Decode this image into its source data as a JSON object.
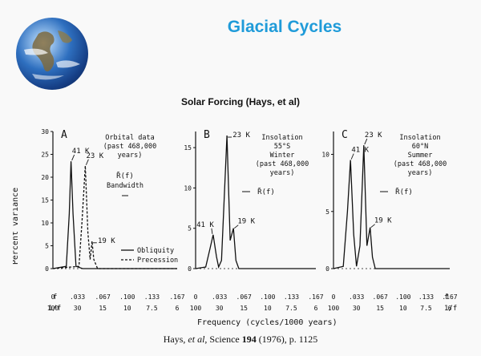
{
  "title": "Glacial Cycles",
  "subtitle": "Solar Forcing (Hays, et al)",
  "citation": {
    "prefix": "Hays, ",
    "etal": "et al",
    "journal": ", Science ",
    "volume": "194",
    "rest": " (1976), p. 1125"
  },
  "figure": {
    "ylabel": "Percent variance",
    "xlabel": "Frequency (cycles/1000 years)",
    "f_label": "f",
    "inv_label": "1/f",
    "f_ticks": [
      "0",
      ".033",
      ".067",
      ".100",
      ".133",
      ".167"
    ],
    "inv_ticks": [
      "100",
      "30",
      "15",
      "10",
      "7.5",
      "6"
    ]
  },
  "chart_data": [
    {
      "type": "line",
      "panel": "A",
      "annotation": [
        "Orbital data",
        "(past 468,000",
        "years)"
      ],
      "r_label": "R̄(f)",
      "bandwidth_label": "Bandwidth",
      "y_ticks": [
        "0",
        "5",
        "10",
        "15",
        "20",
        "25",
        "30"
      ],
      "ylim": [
        0,
        30
      ],
      "xlim": [
        0,
        0.167
      ],
      "peak_labels": [
        "41 K",
        "23 K",
        "19 K"
      ],
      "series": [
        {
          "name": "Obliquity",
          "x": [
            0.0,
            0.018,
            0.022,
            0.0244,
            0.027,
            0.031,
            0.04,
            0.167
          ],
          "values": [
            0,
            0.5,
            12,
            23.5,
            12,
            0.5,
            0,
            0
          ]
        },
        {
          "name": "Precession",
          "x": [
            0.0,
            0.035,
            0.039,
            0.0435,
            0.047,
            0.05,
            0.052,
            0.0526,
            0.055,
            0.06,
            0.167
          ],
          "values": [
            0,
            0.5,
            10,
            22.5,
            8,
            2,
            5,
            6,
            2,
            0,
            0
          ]
        }
      ]
    },
    {
      "type": "line",
      "panel": "B",
      "annotation": [
        "Insolation",
        "55°S",
        "Winter",
        "(past 468,000",
        "years)"
      ],
      "r_label": "R̄(f)",
      "y_ticks": [
        "0",
        "5",
        "10",
        "15"
      ],
      "ylim": [
        0,
        17
      ],
      "xlim": [
        0,
        0.167
      ],
      "peak_labels": [
        "23 K",
        "41 K",
        "19 K"
      ],
      "series": [
        {
          "name": "",
          "x": [
            0.0,
            0.014,
            0.02,
            0.0244,
            0.029,
            0.032,
            0.036,
            0.0435,
            0.048,
            0.0526,
            0.056,
            0.06,
            0.167
          ],
          "values": [
            0,
            0.2,
            2.5,
            4.2,
            1.5,
            0.2,
            1,
            16.5,
            3.5,
            5,
            1,
            0,
            0
          ]
        }
      ]
    },
    {
      "type": "line",
      "panel": "C",
      "annotation": [
        "Insolation",
        "60°N",
        "Summer",
        "(past 468,000",
        "years)"
      ],
      "r_label": "R̄(f)",
      "y_ticks": [
        "0",
        "5",
        "10"
      ],
      "ylim": [
        0,
        12
      ],
      "xlim": [
        0,
        0.167
      ],
      "peak_labels": [
        "41 K",
        "23 K",
        "19 K"
      ],
      "series": [
        {
          "name": "",
          "x": [
            0.0,
            0.014,
            0.02,
            0.0244,
            0.029,
            0.033,
            0.038,
            0.0435,
            0.048,
            0.0526,
            0.056,
            0.06,
            0.167
          ],
          "values": [
            0,
            0.2,
            5,
            9.5,
            3,
            0.2,
            2,
            10.8,
            2,
            3.6,
            1,
            0,
            0
          ]
        }
      ]
    }
  ]
}
